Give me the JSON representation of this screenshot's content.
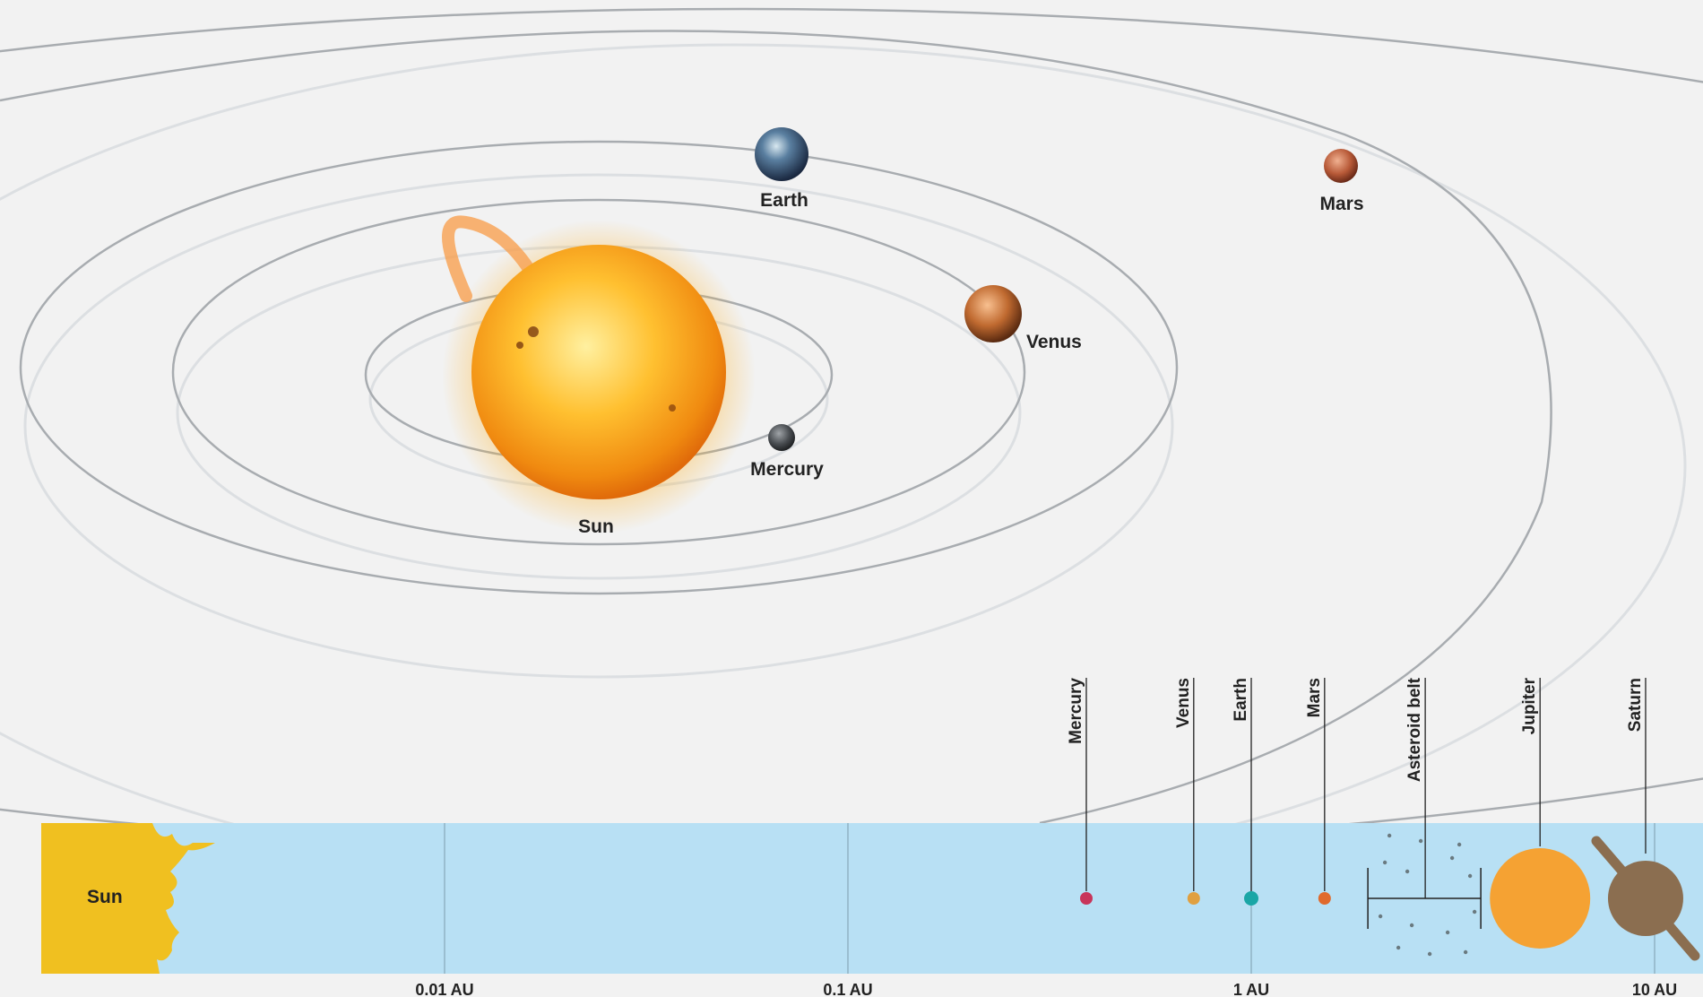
{
  "orbit_diagram": {
    "labels": {
      "earth": "Earth",
      "mars": "Mars",
      "venus": "Venus",
      "mercury": "Mercury",
      "sun": "Sun"
    }
  },
  "scale_bar": {
    "sun_label": "Sun",
    "objects": [
      {
        "name": "Mercury",
        "au": 0.39,
        "color": "#c8355a"
      },
      {
        "name": "Venus",
        "au": 0.72,
        "color": "#e0a040"
      },
      {
        "name": "Earth",
        "au": 1.0,
        "color": "#1aa6a6"
      },
      {
        "name": "Mars",
        "au": 1.52,
        "color": "#e06a2c"
      },
      {
        "name": "Asteroid belt",
        "au": 2.7
      },
      {
        "name": "Jupiter",
        "au": 5.2,
        "color": "#f5a233"
      },
      {
        "name": "Saturn",
        "au": 9.5,
        "color": "#8b6e50"
      }
    ],
    "ticks": [
      {
        "label": "0.01 AU",
        "au": 0.01
      },
      {
        "label": "0.1 AU",
        "au": 0.1
      },
      {
        "label": "1 AU",
        "au": 1
      },
      {
        "label": "10 AU",
        "au": 10
      }
    ],
    "scale": "log"
  },
  "colors": {
    "background": "#f2f2f2",
    "orbit": "#a8acb0",
    "bar": "#b8e0f4",
    "sun_bar": "#f0c020",
    "sun_glow": "#ffb020"
  }
}
